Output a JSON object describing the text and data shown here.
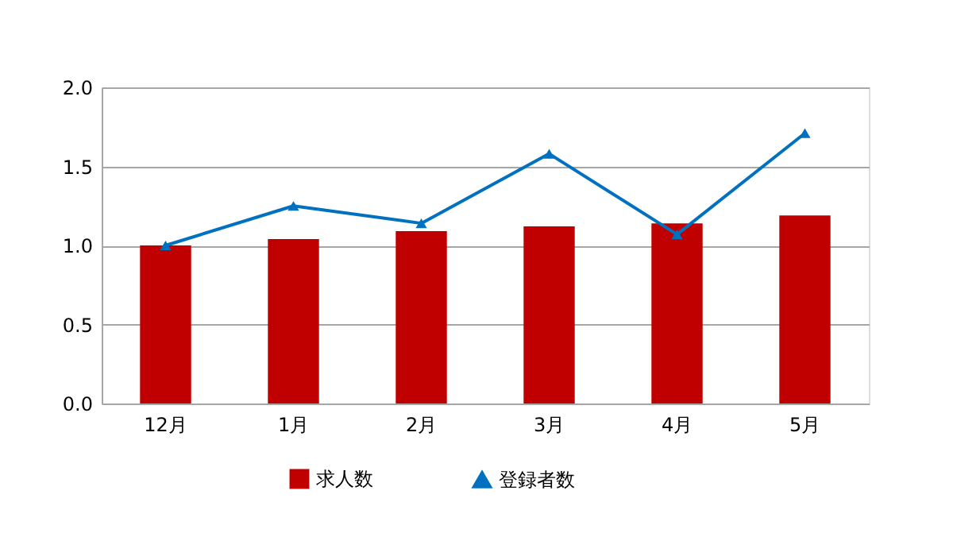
{
  "chart_data": {
    "type": "bar",
    "categories": [
      "12月",
      "1月",
      "2月",
      "3月",
      "4月",
      "5月"
    ],
    "series": [
      {
        "name": "求人数",
        "color": "#c00000",
        "values": [
          1.0,
          1.04,
          1.09,
          1.12,
          1.14,
          1.19
        ]
      },
      {
        "name": "登録者数",
        "type": "line",
        "color": "#0070c0",
        "marker": "triangle",
        "values": [
          1.0,
          1.25,
          1.14,
          1.58,
          1.07,
          1.71
        ]
      }
    ],
    "ylim": [
      0,
      2.0
    ],
    "yticks": [
      {
        "value": 0,
        "label": "0.0"
      },
      {
        "value": 0.5,
        "label": "0.5"
      },
      {
        "value": 1.0,
        "label": "1.0"
      },
      {
        "value": 1.5,
        "label": "1.5"
      },
      {
        "value": 2.0,
        "label": "2.0"
      }
    ],
    "grid": "y",
    "legend": "bottom"
  }
}
